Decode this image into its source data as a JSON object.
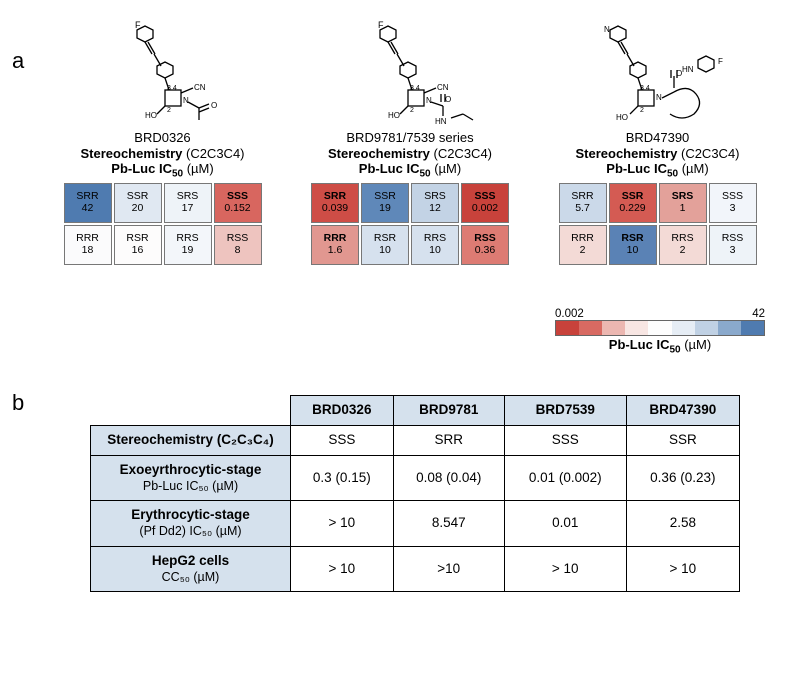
{
  "panelA_label": "a",
  "panelB_label": "b",
  "compounds": [
    {
      "name": "BRD0326"
    },
    {
      "name": "BRD9781/7539 series"
    },
    {
      "name": "BRD47390"
    }
  ],
  "stereo_line_bold": "Stereochemistry",
  "stereo_line_rest": "(C2C3C4)",
  "ic50_line_bold": "Pb-Luc IC",
  "ic50_sub": "50",
  "ic50_unit": "(µM)",
  "heatmaps": [
    {
      "cells": [
        {
          "lab": "SRR",
          "val": "42",
          "bg": "#4f7bb0",
          "bold": false
        },
        {
          "lab": "SSR",
          "val": "20",
          "bg": "#e0e8f2",
          "bold": false
        },
        {
          "lab": "SRS",
          "val": "17",
          "bg": "#eef3f8",
          "bold": false
        },
        {
          "lab": "SSS",
          "val": "0.152",
          "bg": "#d8665f",
          "bold": true
        },
        {
          "lab": "RRR",
          "val": "18",
          "bg": "#fbfbfc",
          "bold": false
        },
        {
          "lab": "RSR",
          "val": "16",
          "bg": "#fdfcfc",
          "bold": false
        },
        {
          "lab": "RRS",
          "val": "19",
          "bg": "#f3f6fa",
          "bold": false
        },
        {
          "lab": "RSS",
          "val": "8",
          "bg": "#eec4bf",
          "bold": false
        }
      ]
    },
    {
      "cells": [
        {
          "lab": "SRR",
          "val": "0.039",
          "bg": "#ce4d46",
          "bold": true
        },
        {
          "lab": "SSR",
          "val": "19",
          "bg": "#5f88b9",
          "bold": false
        },
        {
          "lab": "SRS",
          "val": "12",
          "bg": "#c3d3e5",
          "bold": false
        },
        {
          "lab": "SSS",
          "val": "0.002",
          "bg": "#c8423b",
          "bold": true
        },
        {
          "lab": "RRR",
          "val": "1.6",
          "bg": "#e19790",
          "bold": true
        },
        {
          "lab": "RSR",
          "val": "10",
          "bg": "#d6e1ee",
          "bold": false
        },
        {
          "lab": "RRS",
          "val": "10",
          "bg": "#d6e1ee",
          "bold": false
        },
        {
          "lab": "RSS",
          "val": "0.36",
          "bg": "#dd7b73",
          "bold": true
        }
      ]
    },
    {
      "cells": [
        {
          "lab": "SRR",
          "val": "5.7",
          "bg": "#cbd9e9",
          "bold": false
        },
        {
          "lab": "SSR",
          "val": "0.229",
          "bg": "#d45b53",
          "bold": true
        },
        {
          "lab": "SRS",
          "val": "1",
          "bg": "#e3a19a",
          "bold": true
        },
        {
          "lab": "SSS",
          "val": "3",
          "bg": "#f2f5fa",
          "bold": false
        },
        {
          "lab": "RRR",
          "val": "2",
          "bg": "#f3dad6",
          "bold": false
        },
        {
          "lab": "RSR",
          "val": "10",
          "bg": "#5a82b5",
          "bold": true
        },
        {
          "lab": "RRS",
          "val": "2",
          "bg": "#f3dad6",
          "bold": false
        },
        {
          "lab": "RSS",
          "val": "3",
          "bg": "#eef3f8",
          "bold": false
        }
      ]
    }
  ],
  "colorbar": {
    "colors": [
      "#c8423b",
      "#d86a62",
      "#ecb7b1",
      "#f8e6e3",
      "#fdfdfd",
      "#e6edf5",
      "#c0d1e4",
      "#8aa9cc",
      "#4f7bb0"
    ],
    "min": "0.002",
    "max": "42",
    "title_bold": "Pb-Luc IC",
    "title_sub": "50",
    "title_unit": "(µM)"
  },
  "tableB": {
    "headers": [
      "BRD0326",
      "BRD9781",
      "BRD7539",
      "BRD47390"
    ],
    "rows": [
      {
        "h1": "Stereochemistry (C₂C₃C₄)",
        "h2": "",
        "vals": [
          "SSS",
          "SRR",
          "SSS",
          "SSR"
        ]
      },
      {
        "h1": "Exoeyrthrocytic-stage",
        "h2": "Pb-Luc IC₅₀ (µM)",
        "vals": [
          "0.3 (0.15)",
          "0.08 (0.04)",
          "0.01 (0.002)",
          "0.36 (0.23)"
        ]
      },
      {
        "h1": "Erythrocytic-stage",
        "h2": "(Pf Dd2) IC₅₀ (µM)",
        "vals": [
          "> 10",
          "8.547",
          "0.01",
          "2.58"
        ]
      },
      {
        "h1": "HepG2 cells",
        "h2": "CC₅₀ (µM)",
        "vals": [
          "> 10",
          ">10",
          "> 10",
          "> 10"
        ]
      }
    ]
  }
}
